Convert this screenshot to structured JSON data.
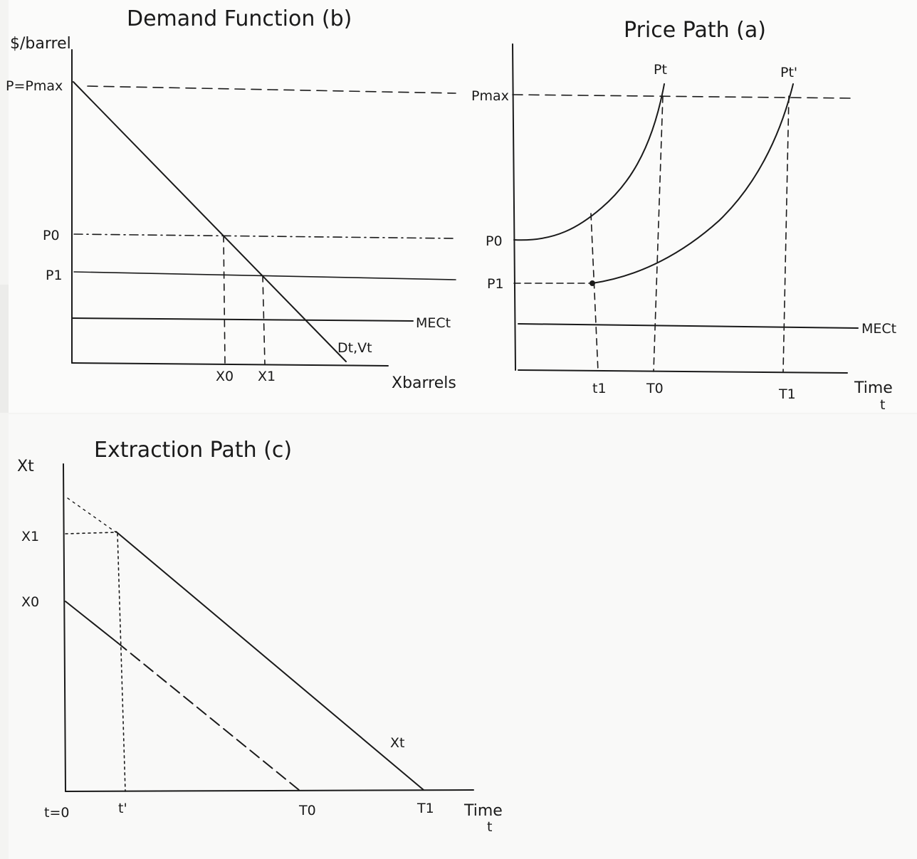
{
  "panels": {
    "demand": {
      "title": "Demand Function (b)",
      "y_axis_label": "$/barrel",
      "x_axis_label": "Xbarrels",
      "price_labels": [
        "P=Pmax",
        "P0",
        "P1"
      ],
      "quantity_labels": [
        "X0",
        "X1"
      ],
      "curve_labels": [
        "MECt",
        "Dt,Vt"
      ]
    },
    "price_path": {
      "title": "Price Path (a)",
      "x_axis_label": "Time",
      "x_axis_sub": "t",
      "price_labels": [
        "Pmax",
        "P0",
        "P1"
      ],
      "curve_labels": [
        "Pt",
        "Pt'",
        "MECt"
      ],
      "time_labels": [
        "t1",
        "T0",
        "T1"
      ]
    },
    "extraction": {
      "title": "Extraction Path (c)",
      "y_axis_label": "Xt",
      "x_axis_label": "Time",
      "x_axis_sub": "t",
      "quantity_labels": [
        "X1",
        "X0"
      ],
      "curve_labels": [
        "Xt"
      ],
      "time_labels": [
        "t=0",
        "t'",
        "T0",
        "T1"
      ]
    }
  },
  "colors": {
    "ink": "#1a1a1a",
    "paper": "#fbfbfa"
  }
}
